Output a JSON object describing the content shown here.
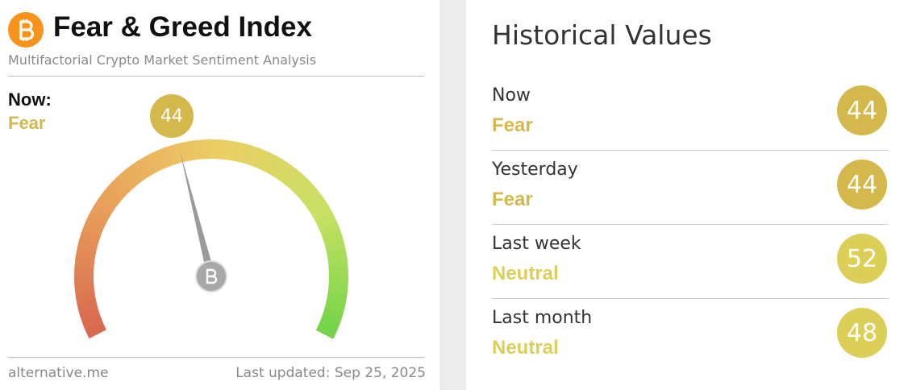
{
  "header": {
    "title": "Fear & Greed Index",
    "subtitle": "Multifactorial Crypto Market Sentiment Analysis"
  },
  "now": {
    "label": "Now:",
    "classification": "Fear",
    "value": 44,
    "color": "#d5b84c"
  },
  "gauge": {
    "range": [
      0,
      100
    ]
  },
  "footer": {
    "source": "alternative.me",
    "updated": "Last updated: Sep 25, 2025"
  },
  "historical": {
    "title": "Historical Values",
    "rows": [
      {
        "label": "Now",
        "classification": "Fear",
        "value": 44,
        "color": "#d5b84c"
      },
      {
        "label": "Yesterday",
        "classification": "Fear",
        "value": 44,
        "color": "#d5b84c"
      },
      {
        "label": "Last week",
        "classification": "Neutral",
        "value": 52,
        "color": "#dccf58"
      },
      {
        "label": "Last month",
        "classification": "Neutral",
        "value": 48,
        "color": "#dccf58"
      }
    ]
  }
}
